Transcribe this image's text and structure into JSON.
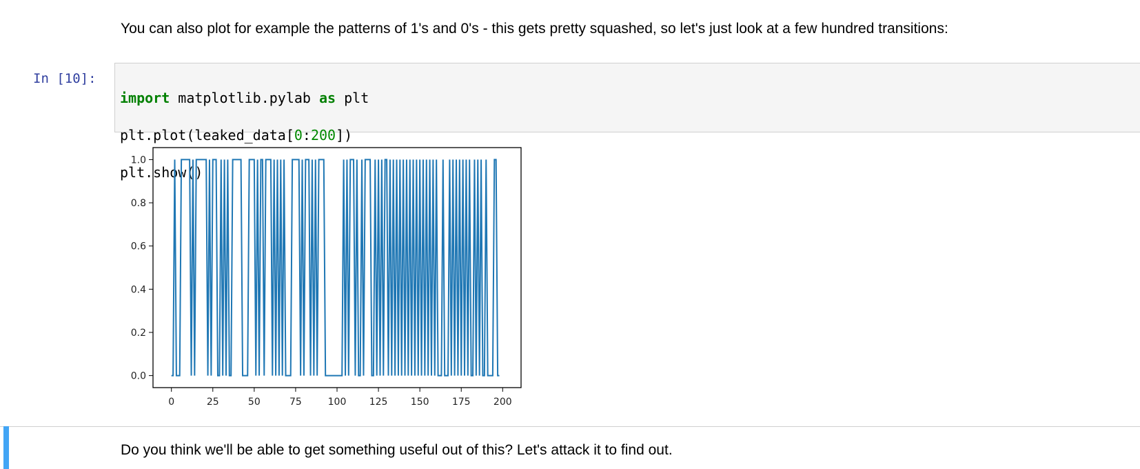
{
  "markdown_top": "You can also plot for example the patterns of 1's and 0's - this gets pretty squashed, so let's just look at a few hundred transitions:",
  "markdown_bottom": "Do you think we'll be able to get something useful out of this? Let's attack it to find out.",
  "input_prompt": "In [10]:",
  "code": {
    "line1": {
      "kw1": "import",
      "t1": " matplotlib.pylab ",
      "kw2": "as",
      "t2": " plt"
    },
    "line2": {
      "t1": "plt.plot(leaked_data[",
      "n1": "0",
      "t2": ":",
      "n2": "200",
      "t3": "])"
    },
    "line3": "plt.show()"
  },
  "chart_data": {
    "type": "line",
    "xlim": [
      0,
      200
    ],
    "ylim": [
      0,
      1
    ],
    "x_ticks": [
      "0",
      "25",
      "50",
      "75",
      "100",
      "125",
      "150",
      "175",
      "200"
    ],
    "y_ticks": [
      "0.0",
      "0.2",
      "0.4",
      "0.6",
      "0.8",
      "1.0"
    ],
    "color": "#1f77b4",
    "grid": false,
    "values": [
      0,
      0,
      1,
      0,
      0,
      0,
      1,
      1,
      1,
      1,
      1,
      1,
      0,
      1,
      0,
      1,
      1,
      1,
      1,
      1,
      1,
      1,
      0,
      1,
      0,
      1,
      1,
      1,
      0,
      0,
      1,
      0,
      1,
      0,
      1,
      0,
      0,
      1,
      1,
      1,
      1,
      1,
      1,
      0,
      0,
      0,
      0,
      1,
      1,
      1,
      1,
      0,
      1,
      0,
      1,
      1,
      0,
      1,
      1,
      1,
      1,
      0,
      1,
      0,
      1,
      0,
      1,
      0,
      1,
      0,
      0,
      0,
      0,
      1,
      1,
      1,
      1,
      1,
      0,
      1,
      0,
      1,
      1,
      1,
      0,
      1,
      0,
      1,
      0,
      1,
      1,
      1,
      1,
      0,
      0,
      0,
      0,
      0,
      0,
      0,
      0,
      0,
      0,
      0,
      1,
      0,
      1,
      0,
      1,
      1,
      1,
      0,
      1,
      0,
      0,
      1,
      0,
      1,
      1,
      1,
      1,
      0,
      0,
      1,
      0,
      1,
      0,
      1,
      0,
      1,
      1,
      0,
      1,
      0,
      1,
      0,
      1,
      0,
      1,
      0,
      1,
      0,
      1,
      0,
      1,
      0,
      1,
      0,
      1,
      0,
      1,
      0,
      1,
      0,
      1,
      0,
      1,
      0,
      1,
      0,
      1,
      0,
      0,
      0,
      1,
      0,
      0,
      0,
      1,
      0,
      1,
      0,
      1,
      0,
      1,
      0,
      1,
      0,
      1,
      0,
      1,
      0,
      0,
      1,
      0,
      1,
      0,
      1,
      0,
      0,
      1,
      0,
      0,
      0,
      0,
      1,
      1,
      0,
      0
    ]
  }
}
